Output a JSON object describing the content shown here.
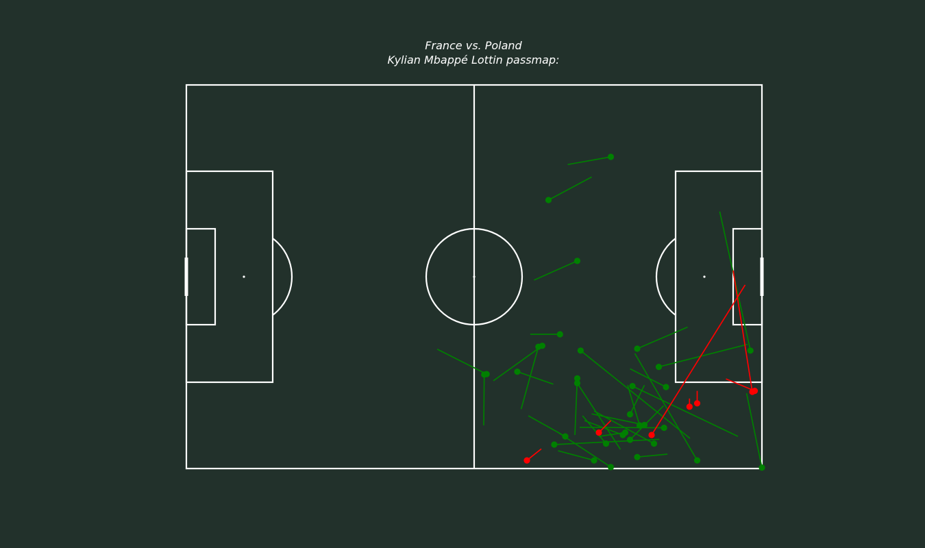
{
  "colors": {
    "background": "#22312b",
    "pitch_lines": "#ffffff",
    "successful_pass": "#008000",
    "unsuccessful_pass": "#ff0000"
  },
  "chart_data": {
    "type": "scatter",
    "subtype": "passmap",
    "title_line1": "France vs. Poland",
    "title_line2": "Kylian Mbappé Lottin passmap:",
    "pitch": {
      "length": 120,
      "width": 80
    },
    "grid": false,
    "legend": "none",
    "series": [
      {
        "outcome": "successful",
        "color": "#008000",
        "passes": [
          {
            "x": 88.5,
            "y": 15.0,
            "end_x": 79.5,
            "end_y": 16.6
          },
          {
            "x": 75.5,
            "y": 24.0,
            "end_x": 84.5,
            "end_y": 19.2
          },
          {
            "x": 81.5,
            "y": 36.7,
            "end_x": 72.5,
            "end_y": 40.7
          },
          {
            "x": 77.9,
            "y": 52.0,
            "end_x": 71.7,
            "end_y": 52.0
          },
          {
            "x": 74.2,
            "y": 54.4,
            "end_x": 64.0,
            "end_y": 61.7
          },
          {
            "x": 73.4,
            "y": 54.6,
            "end_x": 69.8,
            "end_y": 67.6
          },
          {
            "x": 62.6,
            "y": 60.3,
            "end_x": 52.3,
            "end_y": 55.1
          },
          {
            "x": 62.1,
            "y": 60.4,
            "end_x": 62.0,
            "end_y": 71.0
          },
          {
            "x": 69.0,
            "y": 59.8,
            "end_x": 76.5,
            "end_y": 62.4
          },
          {
            "x": 82.2,
            "y": 55.4,
            "end_x": 105.0,
            "end_y": 73.7
          },
          {
            "x": 81.5,
            "y": 61.2,
            "end_x": 81.0,
            "end_y": 73.0
          },
          {
            "x": 81.5,
            "y": 62.2,
            "end_x": 90.5,
            "end_y": 76.0
          },
          {
            "x": 94.0,
            "y": 55.0,
            "end_x": 104.5,
            "end_y": 50.5
          },
          {
            "x": 98.5,
            "y": 58.8,
            "end_x": 117.0,
            "end_y": 54.1
          },
          {
            "x": 93.0,
            "y": 62.8,
            "end_x": 115.0,
            "end_y": 73.3
          },
          {
            "x": 106.5,
            "y": 78.3,
            "end_x": 93.5,
            "end_y": 56.0
          },
          {
            "x": 100.0,
            "y": 63.0,
            "end_x": 92.5,
            "end_y": 59.2
          },
          {
            "x": 117.6,
            "y": 55.4,
            "end_x": 111.2,
            "end_y": 26.4
          },
          {
            "x": 120.0,
            "y": 79.8,
            "end_x": 116.8,
            "end_y": 64.3
          },
          {
            "x": 87.5,
            "y": 74.8,
            "end_x": 82.6,
            "end_y": 69.0
          },
          {
            "x": 95.5,
            "y": 70.9,
            "end_x": 84.5,
            "end_y": 68.6
          },
          {
            "x": 99.6,
            "y": 71.5,
            "end_x": 82.0,
            "end_y": 71.4
          },
          {
            "x": 94.5,
            "y": 71.0,
            "end_x": 92.0,
            "end_y": 62.6
          },
          {
            "x": 92.5,
            "y": 74.0,
            "end_x": 99.5,
            "end_y": 66.9
          },
          {
            "x": 91.5,
            "y": 72.5,
            "end_x": 86.0,
            "end_y": 73.3
          },
          {
            "x": 97.5,
            "y": 74.8,
            "end_x": 85.0,
            "end_y": 68.0
          },
          {
            "x": 91.0,
            "y": 73.0,
            "end_x": 83.0,
            "end_y": 70.0
          },
          {
            "x": 79.0,
            "y": 73.3,
            "end_x": 71.3,
            "end_y": 69.0
          },
          {
            "x": 76.7,
            "y": 75.0,
            "end_x": 98.6,
            "end_y": 73.9
          },
          {
            "x": 88.5,
            "y": 79.7,
            "end_x": 77.4,
            "end_y": 72.4
          },
          {
            "x": 85.0,
            "y": 78.3,
            "end_x": 77.5,
            "end_y": 76.3
          },
          {
            "x": 94.0,
            "y": 77.6,
            "end_x": 100.3,
            "end_y": 77.0
          },
          {
            "x": 92.5,
            "y": 68.7,
            "end_x": 95.5,
            "end_y": 62.6
          }
        ]
      },
      {
        "outcome": "unsuccessful",
        "color": "#ff0000",
        "passes": [
          {
            "x": 97.0,
            "y": 73.0,
            "end_x": 116.5,
            "end_y": 41.7
          },
          {
            "x": 118.0,
            "y": 64.0,
            "end_x": 114.0,
            "end_y": 38.7
          },
          {
            "x": 118.5,
            "y": 63.8,
            "end_x": 112.5,
            "end_y": 61.3
          },
          {
            "x": 104.9,
            "y": 67.1,
            "end_x": 104.9,
            "end_y": 65.4
          },
          {
            "x": 106.5,
            "y": 66.4,
            "end_x": 106.5,
            "end_y": 63.8
          },
          {
            "x": 86.0,
            "y": 72.5,
            "end_x": 88.5,
            "end_y": 70.0
          },
          {
            "x": 71.0,
            "y": 78.3,
            "end_x": 74.0,
            "end_y": 75.9
          }
        ]
      }
    ]
  }
}
